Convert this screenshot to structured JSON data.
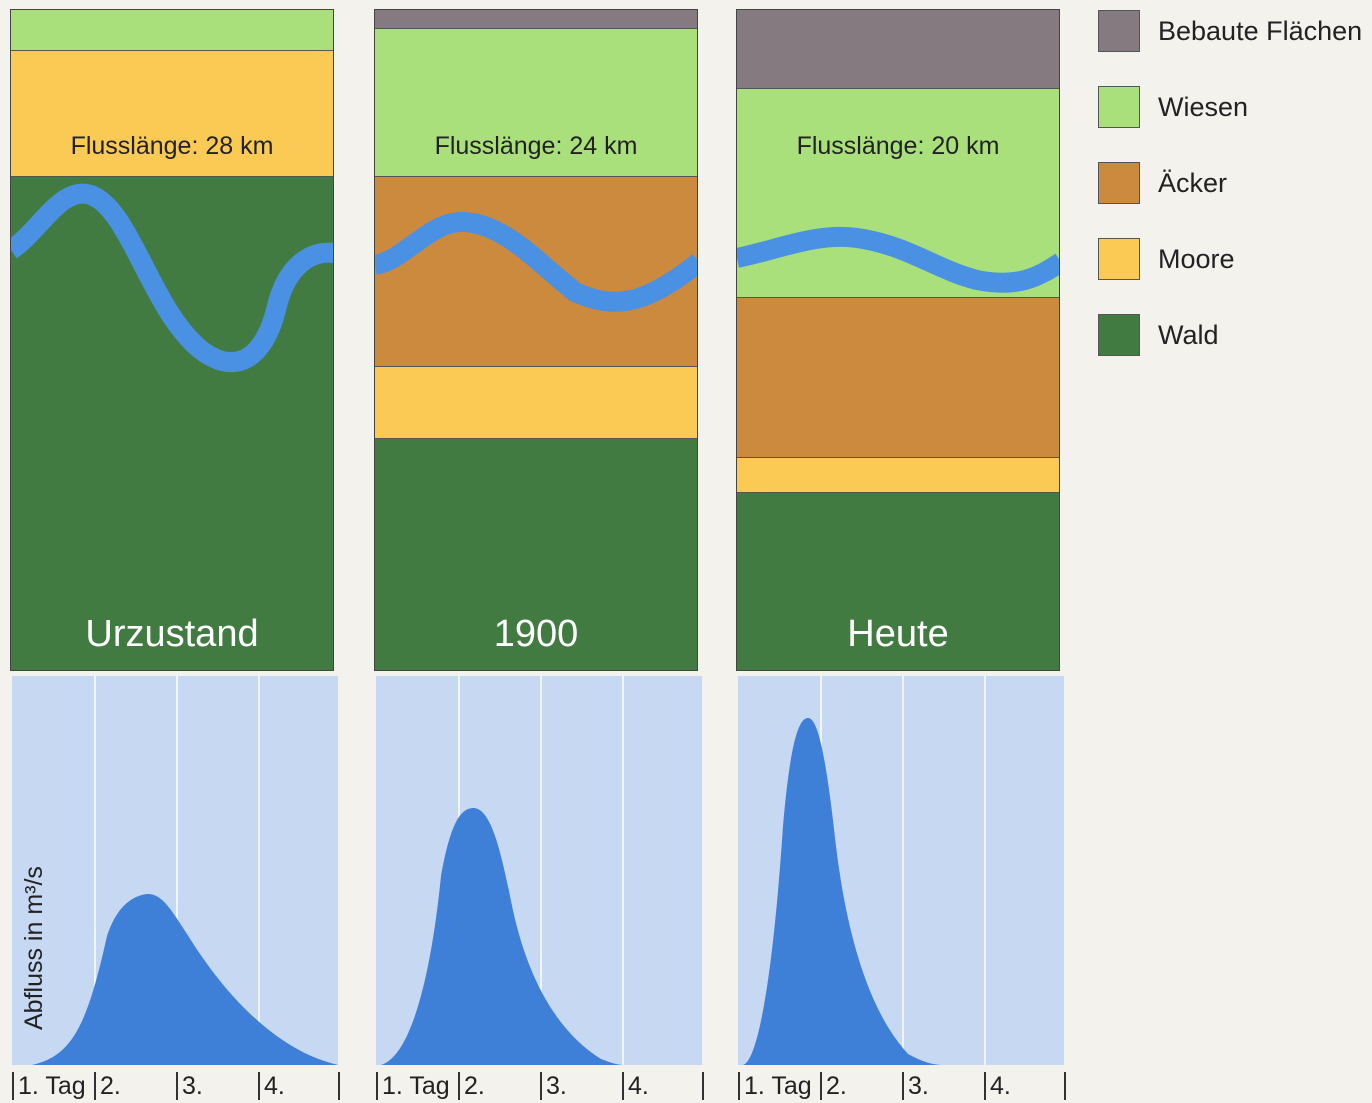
{
  "colors": {
    "bebaut": "#857a80",
    "wiesen": "#a9e07c",
    "aecker": "#cc8a3f",
    "moore": "#fbca55",
    "wald": "#417b41",
    "river": "#4a90e3",
    "chart_bg": "#c6d8f2",
    "chart_fill": "#3e7fd8"
  },
  "legend": [
    {
      "label": "Bebaute Flächen",
      "color_key": "bebaut"
    },
    {
      "label": "Wiesen",
      "color_key": "wiesen"
    },
    {
      "label": "Äcker",
      "color_key": "aecker"
    },
    {
      "label": "Moore",
      "color_key": "moore"
    },
    {
      "label": "Wald",
      "color_key": "wald"
    }
  ],
  "panels": [
    {
      "title": "Urzustand",
      "flow_length": "Flusslänge: 28 km"
    },
    {
      "title": "1900",
      "flow_length": "Flusslänge: 24 km"
    },
    {
      "title": "Heute",
      "flow_length": "Flusslänge: 20 km"
    }
  ],
  "chart": {
    "ylabel": "Abfluss in m³/s",
    "xticks": [
      "1. Tag",
      "2.",
      "3.",
      "4."
    ]
  }
}
